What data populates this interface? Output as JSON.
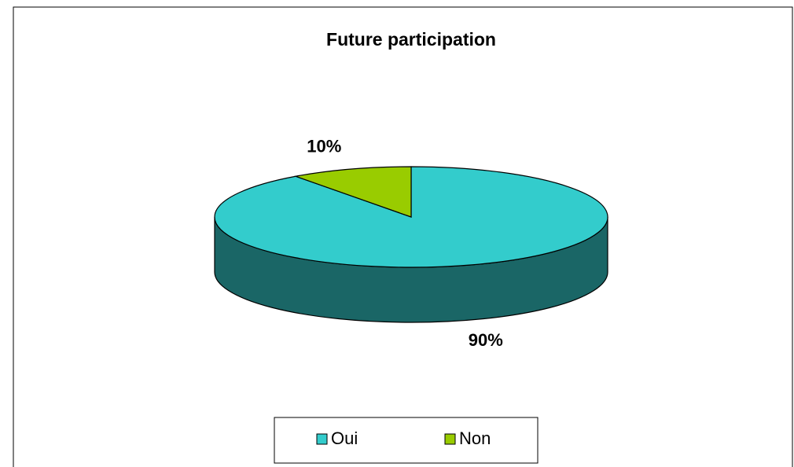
{
  "chart_data": {
    "type": "pie",
    "title": "Future participation",
    "categories": [
      "Oui",
      "Non"
    ],
    "values": [
      90,
      10
    ],
    "value_labels": [
      "90%",
      "10%"
    ],
    "colors": [
      "#33cccc",
      "#99cc00"
    ],
    "legend": "bottom"
  }
}
